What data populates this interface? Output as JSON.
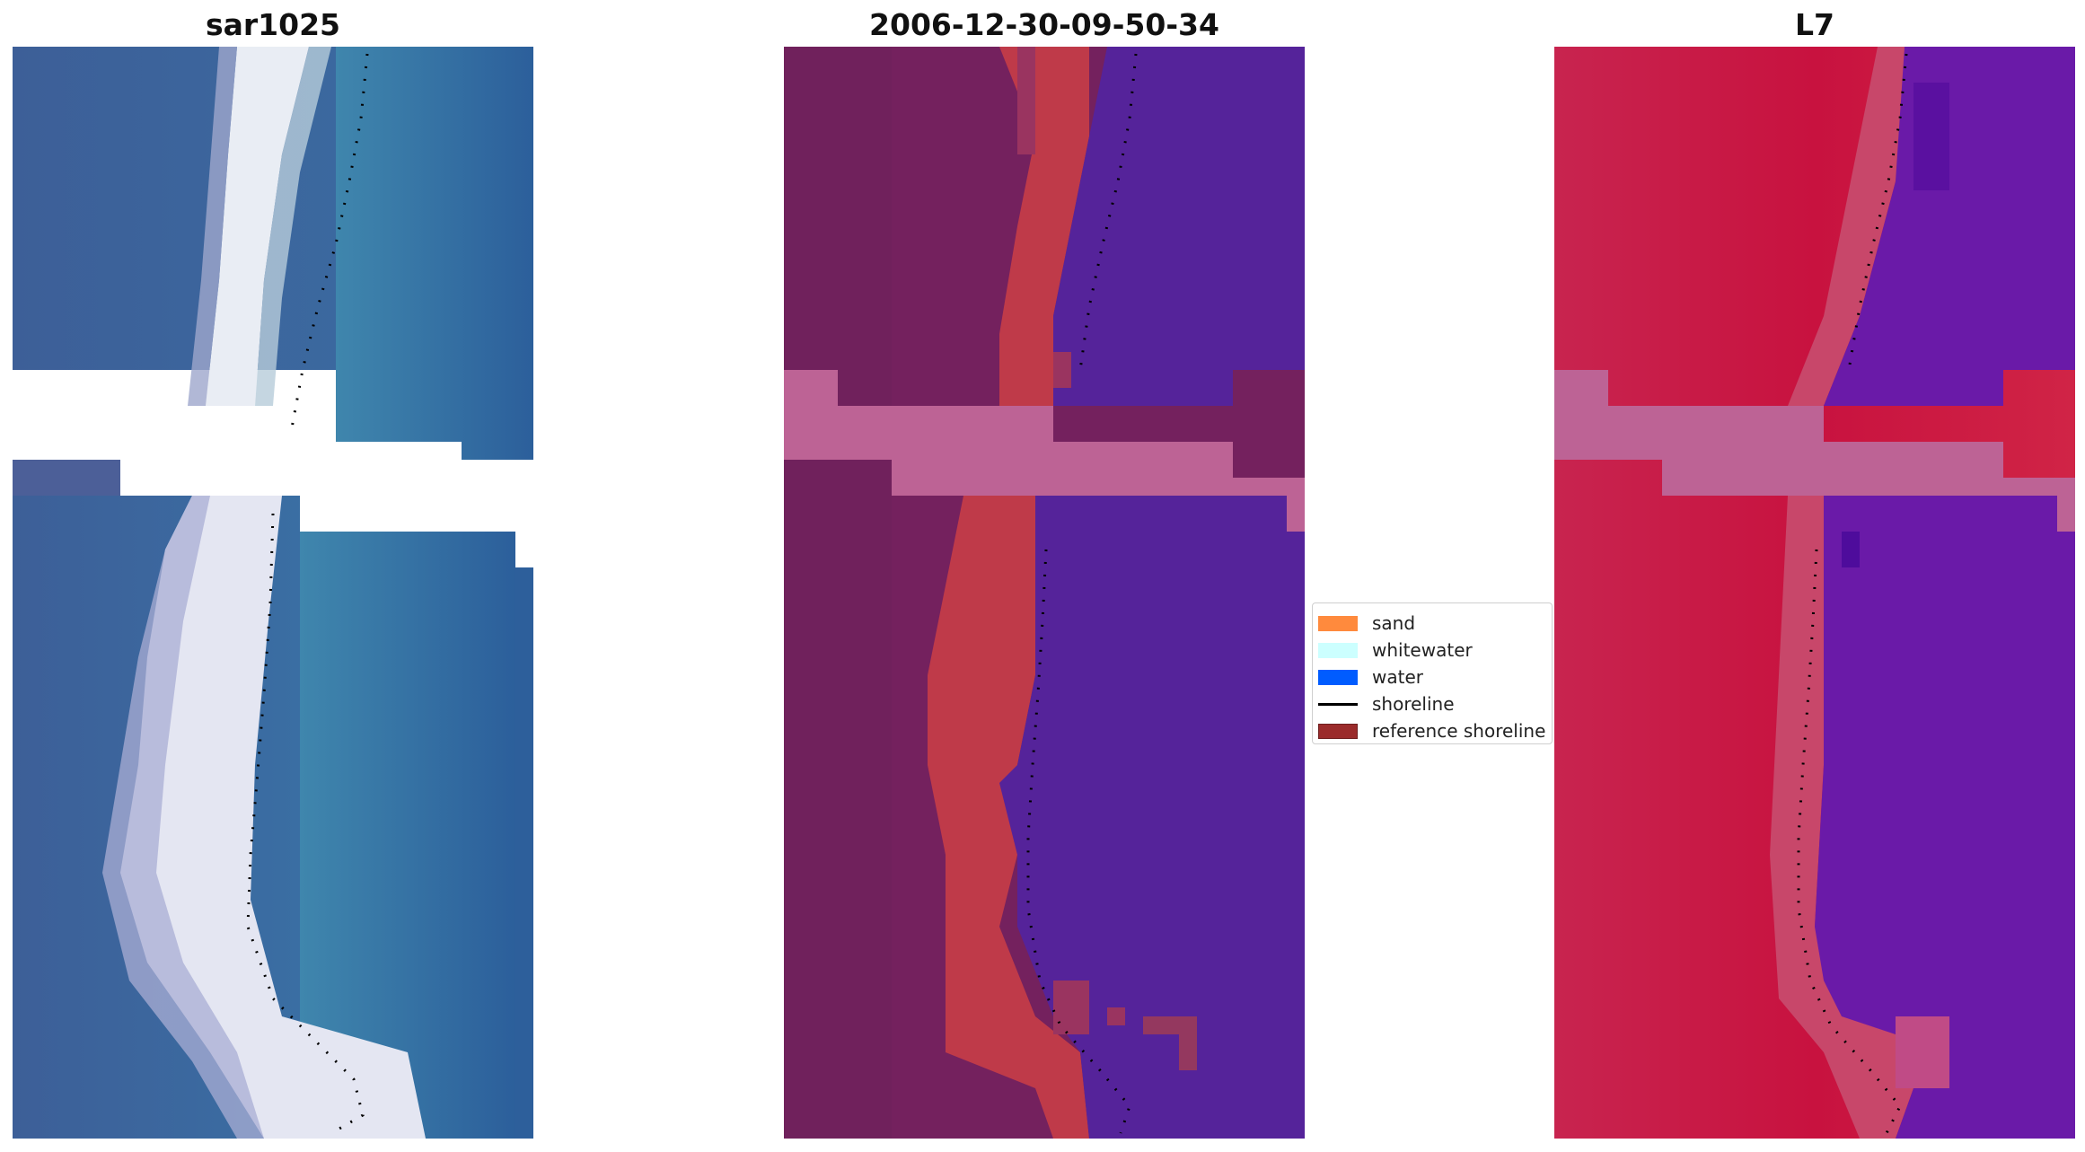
{
  "panels": [
    {
      "title": "sar1025",
      "image_type": "rgb-satellite-composite"
    },
    {
      "title": "2006-12-30-09-50-34",
      "image_type": "classified-overlay"
    },
    {
      "title": "L7",
      "image_type": "false-color-composite"
    }
  ],
  "legend": {
    "items": [
      {
        "label": "sand",
        "color": "#ff8a3d",
        "kind": "patch"
      },
      {
        "label": "whitewater",
        "color": "#ccffff",
        "kind": "patch"
      },
      {
        "label": "water",
        "color": "#005cff",
        "kind": "patch"
      },
      {
        "label": "shoreline",
        "color": "#000000",
        "kind": "line"
      },
      {
        "label": "reference shoreline",
        "color": "#9b2b2b",
        "kind": "patch"
      }
    ]
  },
  "colors": {
    "water_blue": "#2f63a0",
    "whitewater": "#e6ecf4",
    "class_land": "#74215e",
    "class_sand": "#bf3a49",
    "class_water": "#55239a",
    "class_mask": "#bd6395",
    "fc_land": "#c8123f",
    "fc_water": "#6a1aa8"
  }
}
